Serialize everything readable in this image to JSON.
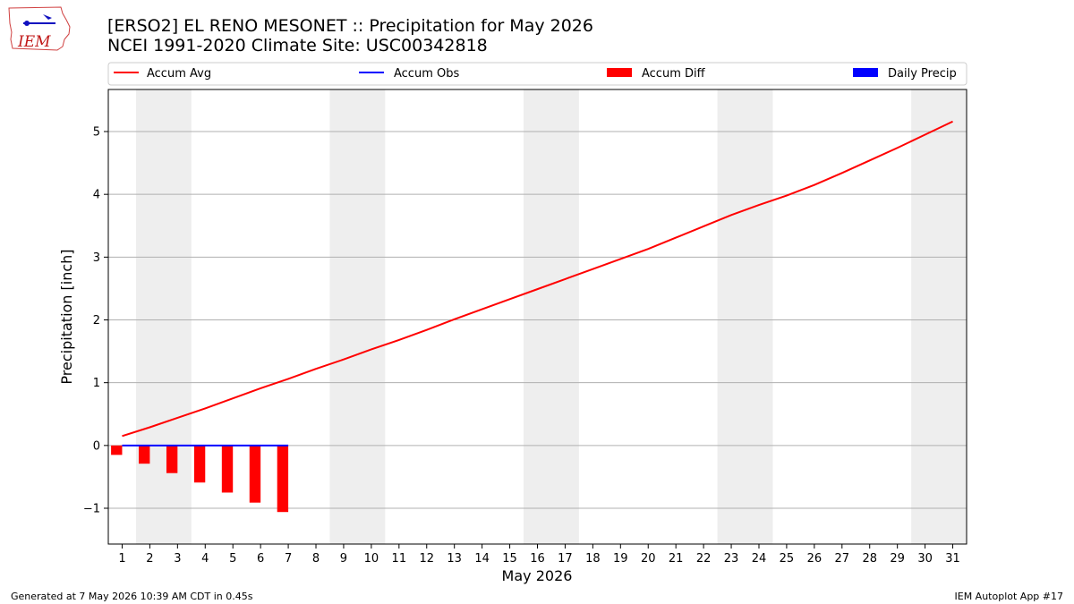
{
  "header": {
    "logo_text": "IEM",
    "title_line1": "[ERSO2] EL RENO MESONET :: Precipitation for May 2026",
    "title_line2": "NCEI 1991-2020 Climate Site: USC00342818"
  },
  "footer": {
    "left": "Generated at 7 May 2026 10:39 AM CDT in 0.45s",
    "right": "IEM Autoplot App #17"
  },
  "chart_data": {
    "type": "line",
    "xlabel": "May 2026",
    "ylabel": "Precipitation [inch]",
    "x": [
      1,
      2,
      3,
      4,
      5,
      6,
      7,
      8,
      9,
      10,
      11,
      12,
      13,
      14,
      15,
      16,
      17,
      18,
      19,
      20,
      21,
      22,
      23,
      24,
      25,
      26,
      27,
      28,
      29,
      30,
      31
    ],
    "xlim": [
      0.5,
      31.5
    ],
    "ylim": [
      -1.57,
      5.67
    ],
    "yticks": [
      -1,
      0,
      1,
      2,
      3,
      4,
      5
    ],
    "grid": "horizontal",
    "legend_position": "top",
    "weekend_shading": [
      [
        1.5,
        3.5
      ],
      [
        8.5,
        10.5
      ],
      [
        15.5,
        17.5
      ],
      [
        22.5,
        24.5
      ],
      [
        29.5,
        31.5
      ]
    ],
    "series": [
      {
        "name": "Accum Avg",
        "kind": "line",
        "color": "#ff0000",
        "x": [
          1,
          2,
          3,
          4,
          5,
          6,
          7,
          8,
          9,
          10,
          11,
          12,
          13,
          14,
          15,
          16,
          17,
          18,
          19,
          20,
          21,
          22,
          23,
          24,
          25,
          26,
          27,
          28,
          29,
          30,
          31
        ],
        "values": [
          0.15,
          0.29,
          0.44,
          0.59,
          0.75,
          0.91,
          1.06,
          1.22,
          1.37,
          1.53,
          1.68,
          1.84,
          2.01,
          2.17,
          2.33,
          2.49,
          2.65,
          2.81,
          2.97,
          3.13,
          3.31,
          3.49,
          3.67,
          3.83,
          3.98,
          4.15,
          4.34,
          4.54,
          4.74,
          4.95,
          5.16
        ]
      },
      {
        "name": "Accum Obs",
        "kind": "line",
        "color": "#0000ff",
        "x": [
          1,
          2,
          3,
          4,
          5,
          6,
          7
        ],
        "values": [
          0,
          0,
          0,
          0,
          0,
          0,
          0
        ]
      },
      {
        "name": "Accum Diff",
        "kind": "bar",
        "color": "#ff0000",
        "offset": -0.2,
        "x": [
          1,
          2,
          3,
          4,
          5,
          6,
          7
        ],
        "values": [
          -0.15,
          -0.29,
          -0.44,
          -0.59,
          -0.75,
          -0.91,
          -1.06
        ]
      },
      {
        "name": "Daily Precip",
        "kind": "bar",
        "color": "#0000ff",
        "offset": 0.2,
        "x": [
          1,
          2,
          3,
          4,
          5,
          6,
          7
        ],
        "values": [
          0,
          0,
          0,
          0,
          0,
          0,
          0
        ]
      }
    ]
  }
}
